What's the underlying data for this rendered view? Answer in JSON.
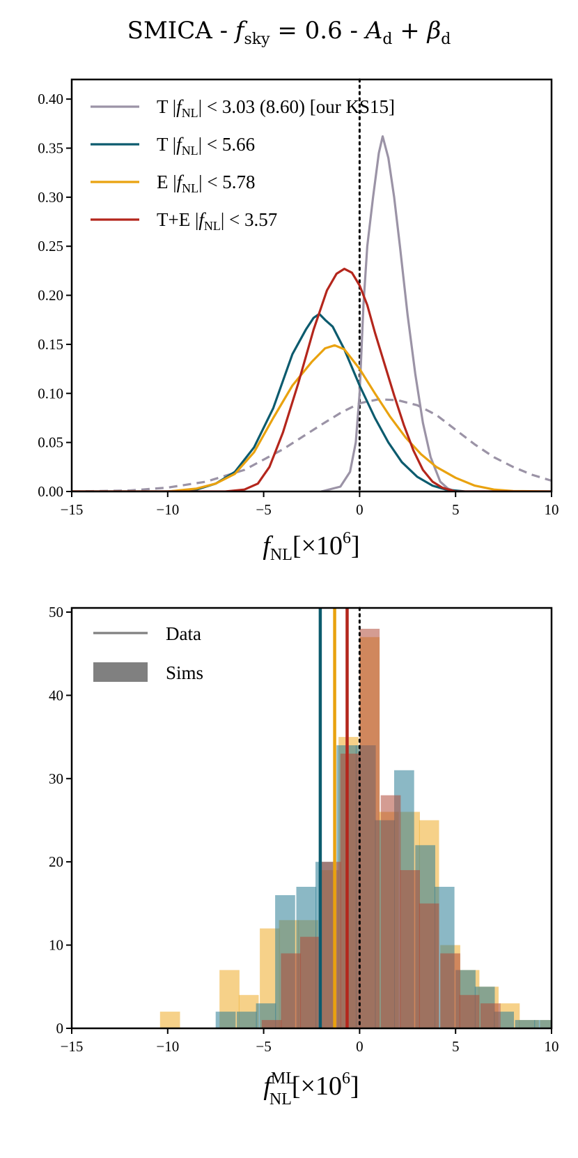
{
  "figure": {
    "title_prefix": "SMICA - ",
    "title_f": "f",
    "title_sub": "sky",
    "title_mid": " = 0.6 - ",
    "title_A": "A",
    "title_d1": "d",
    "title_plus": " + ",
    "title_beta": "β",
    "title_d2": "d"
  },
  "chart_data": [
    {
      "type": "line",
      "name": "posterior",
      "title": "",
      "xlabel_main": "f",
      "xlabel_sub": "NL",
      "xlabel_rest": "[×10",
      "xlabel_exp": "6",
      "xlabel_close": "]",
      "ylabel": "",
      "xlim": [
        -15,
        10
      ],
      "ylim": [
        0,
        0.42
      ],
      "xticks": [
        -15,
        -10,
        -5,
        0,
        5,
        10
      ],
      "xtick_labels": [
        "−15",
        "−10",
        "−5",
        "0",
        "5",
        "10"
      ],
      "yticks": [
        0,
        0.05,
        0.1,
        0.15,
        0.2,
        0.25,
        0.3,
        0.35,
        0.4
      ],
      "ytick_labels": [
        "0.00",
        "0.05",
        "0.10",
        "0.15",
        "0.20",
        "0.25",
        "0.30",
        "0.35",
        "0.40"
      ],
      "vline_x": 0,
      "legend_position": "upper-left",
      "series": [
        {
          "name": "T KS15",
          "label": "T |fNL| < 3.03 (8.60) [our KS15]",
          "label_prefix": "T |",
          "label_rest": "| < 3.03 (8.60) [our KS15]",
          "color": "#9b93a6",
          "dashed": false,
          "x": [
            -2,
            -1,
            -0.5,
            -0.2,
            0,
            0.2,
            0.4,
            0.7,
            1.0,
            1.2,
            1.5,
            1.8,
            2.1,
            2.5,
            2.9,
            3.3,
            3.7,
            4.2,
            4.6,
            5.0
          ],
          "y": [
            0,
            0.005,
            0.02,
            0.05,
            0.1,
            0.19,
            0.25,
            0.3,
            0.345,
            0.362,
            0.34,
            0.3,
            0.25,
            0.18,
            0.12,
            0.07,
            0.035,
            0.01,
            0.003,
            0
          ]
        },
        {
          "name": "KS15 wide",
          "label": "",
          "color": "#9b93a6",
          "dashed": true,
          "x": [
            -15,
            -12,
            -10,
            -8,
            -6,
            -4,
            -2,
            -1,
            0,
            1,
            2,
            3,
            4,
            5,
            6,
            7,
            8,
            9,
            10
          ],
          "y": [
            0.0,
            0.001,
            0.004,
            0.01,
            0.022,
            0.043,
            0.068,
            0.08,
            0.09,
            0.094,
            0.093,
            0.088,
            0.078,
            0.063,
            0.048,
            0.035,
            0.025,
            0.017,
            0.011
          ]
        },
        {
          "name": "T",
          "label": "T |fNL| < 5.66",
          "label_prefix": "T |",
          "label_rest": "| < 5.66",
          "color": "#0c5b6e",
          "dashed": false,
          "x": [
            -15,
            -10,
            -8.5,
            -7.5,
            -6.5,
            -5.5,
            -4.5,
            -3.5,
            -2.8,
            -2.4,
            -2.1,
            -1.8,
            -1.4,
            -0.8,
            0,
            0.8,
            1.5,
            2.2,
            3.0,
            3.8,
            4.5,
            5.5,
            10
          ],
          "y": [
            0,
            0,
            0.002,
            0.008,
            0.02,
            0.045,
            0.085,
            0.14,
            0.165,
            0.177,
            0.181,
            0.175,
            0.168,
            0.145,
            0.108,
            0.075,
            0.05,
            0.03,
            0.015,
            0.006,
            0.002,
            0,
            0
          ]
        },
        {
          "name": "E",
          "label": "E |fNL| < 5.78",
          "label_prefix": "E |",
          "label_rest": "| < 5.78",
          "color": "#e9a20f",
          "dashed": false,
          "x": [
            -15,
            -10,
            -8.5,
            -7.5,
            -6.5,
            -5.5,
            -4.5,
            -3.5,
            -2.5,
            -1.8,
            -1.3,
            -0.8,
            0,
            0.8,
            1.6,
            2.4,
            3.2,
            4.0,
            5.0,
            6.0,
            7.0,
            8.0,
            10
          ],
          "y": [
            0,
            0,
            0.003,
            0.008,
            0.018,
            0.04,
            0.075,
            0.108,
            0.132,
            0.146,
            0.149,
            0.145,
            0.125,
            0.1,
            0.076,
            0.055,
            0.038,
            0.025,
            0.014,
            0.006,
            0.002,
            0.0005,
            0
          ]
        },
        {
          "name": "T+E",
          "label": "T+E |fNL| < 3.57",
          "label_prefix": "T+E |",
          "label_rest": "| < 3.57",
          "color": "#b4261c",
          "dashed": false,
          "x": [
            -15,
            -7,
            -6,
            -5.3,
            -4.7,
            -4.0,
            -3.2,
            -2.4,
            -1.7,
            -1.2,
            -0.8,
            -0.4,
            0,
            0.4,
            0.8,
            1.3,
            1.8,
            2.3,
            2.8,
            3.3,
            3.8,
            4.3,
            5.0,
            10
          ],
          "y": [
            0,
            0,
            0.002,
            0.008,
            0.025,
            0.06,
            0.11,
            0.165,
            0.205,
            0.222,
            0.227,
            0.223,
            0.21,
            0.19,
            0.162,
            0.13,
            0.098,
            0.068,
            0.042,
            0.022,
            0.01,
            0.004,
            0,
            0
          ]
        }
      ]
    },
    {
      "type": "bar",
      "name": "histogram",
      "title": "",
      "xlabel_main": "f",
      "xlabel_sup": "ML",
      "xlabel_sub": "NL",
      "xlabel_rest": "[×10",
      "xlabel_exp": "6",
      "xlabel_close": "]",
      "ylabel": "",
      "xlim": [
        -15,
        10
      ],
      "ylim": [
        0,
        50.5
      ],
      "xticks": [
        -15,
        -10,
        -5,
        0,
        5,
        10
      ],
      "xtick_labels": [
        "−15",
        "−10",
        "−5",
        "0",
        "5",
        "10"
      ],
      "yticks": [
        0,
        10,
        20,
        30,
        40,
        50
      ],
      "ytick_labels": [
        "0",
        "10",
        "20",
        "30",
        "40",
        "50"
      ],
      "vline_x": 0,
      "legend_position": "upper-left",
      "legend": [
        {
          "label": "Data",
          "kind": "line",
          "color": "#808080"
        },
        {
          "label": "Sims",
          "kind": "patch",
          "color": "#808080"
        }
      ],
      "bin_width": 1.04,
      "data_lines": [
        {
          "name": "T",
          "x": -2.05,
          "color": "#0c5b6e"
        },
        {
          "name": "E",
          "x": -1.3,
          "color": "#e9a20f"
        },
        {
          "name": "T+E",
          "x": -0.65,
          "color": "#b4261c"
        }
      ],
      "series": [
        {
          "name": "E sims",
          "color": "#f0b33a",
          "opacity": 0.6,
          "bins_left": [
            -10.4,
            -7.3,
            -6.3,
            -5.2,
            -4.2,
            -3.2,
            -2.1,
            -1.1,
            0.0,
            1.0,
            2.1,
            3.1,
            4.2,
            5.2,
            6.2,
            7.3,
            8.3,
            9.4
          ],
          "values": [
            2,
            7,
            4,
            12,
            13,
            13,
            19,
            35,
            47,
            26,
            26,
            25,
            10,
            7,
            5,
            3,
            1,
            1
          ]
        },
        {
          "name": "T sims",
          "color": "#2c7e96",
          "opacity": 0.55,
          "bins_left": [
            -7.5,
            -6.4,
            -5.4,
            -4.4,
            -3.3,
            -2.3,
            -1.2,
            -0.2,
            0.8,
            1.8,
            2.9,
            3.9,
            5.0,
            6.0,
            7.0,
            8.1,
            9.1
          ],
          "values": [
            2,
            2,
            3,
            16,
            17,
            20,
            34,
            34,
            25,
            31,
            22,
            17,
            7,
            5,
            2,
            1,
            1
          ]
        },
        {
          "name": "T+E sims",
          "color": "#b14a38",
          "opacity": 0.55,
          "bins_left": [
            -5.1,
            -4.1,
            -3.1,
            -2.0,
            -1.0,
            0.0,
            1.1,
            2.1,
            3.1,
            4.2,
            5.2,
            6.3,
            7.3
          ],
          "values": [
            1,
            9,
            11,
            20,
            33,
            48,
            28,
            19,
            15,
            9,
            4,
            3,
            0
          ]
        }
      ]
    }
  ]
}
